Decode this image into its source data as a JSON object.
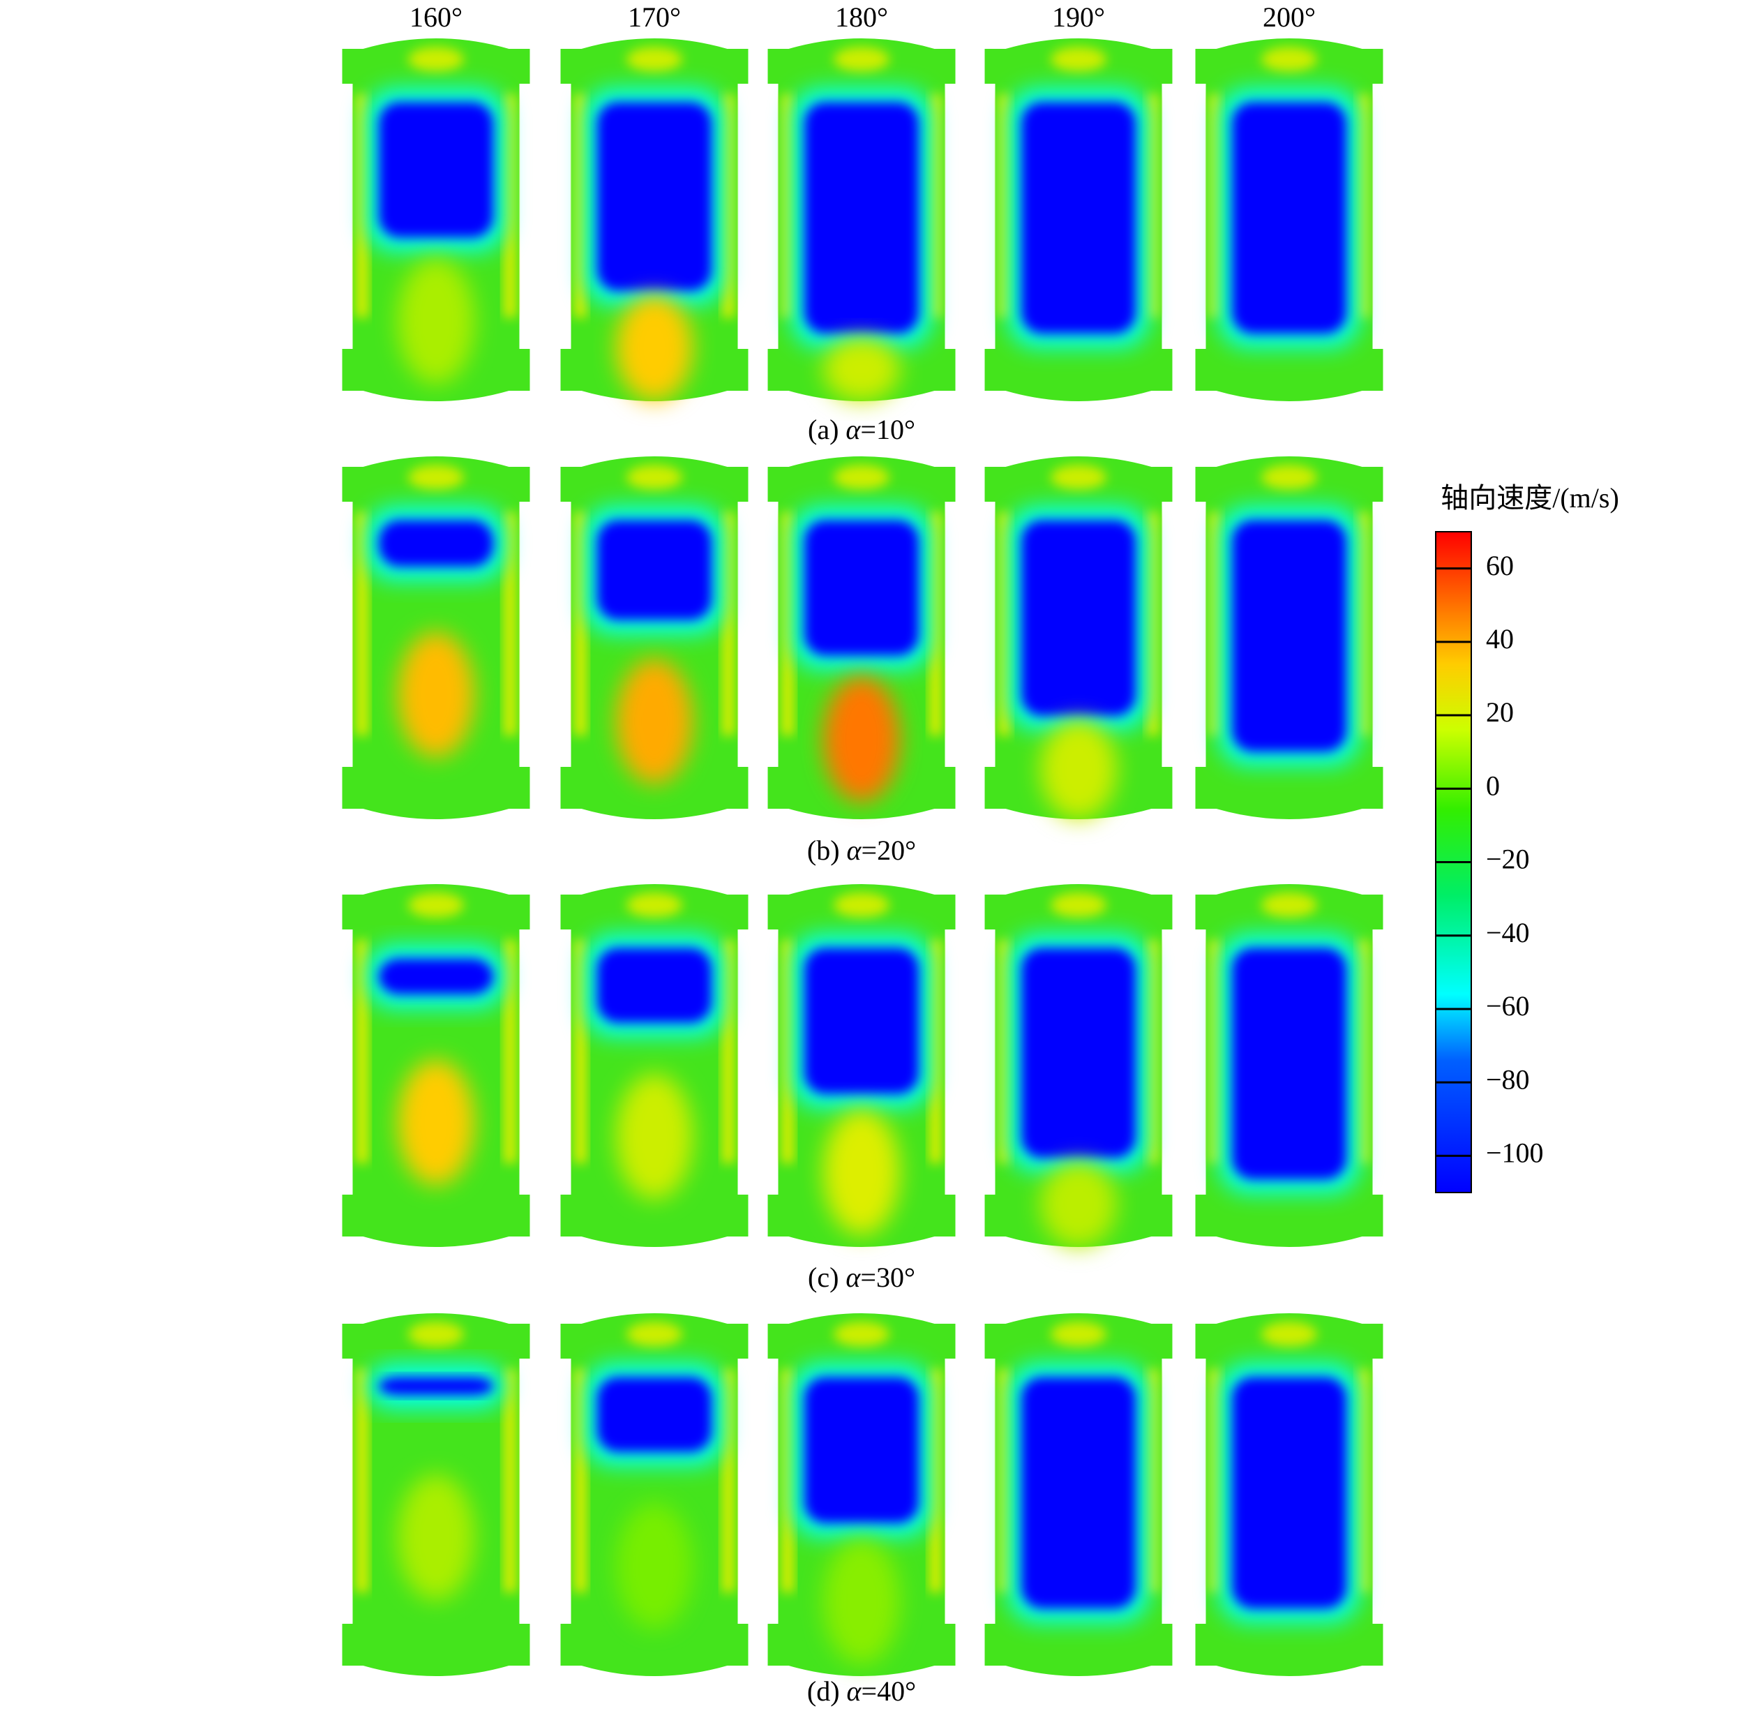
{
  "columns": [
    "160°",
    "170°",
    "180°",
    "190°",
    "200°"
  ],
  "rows": [
    {
      "prefix": "(a)",
      "symbol": "α",
      "rest": "=10°"
    },
    {
      "prefix": "(b)",
      "symbol": "α",
      "rest": "=20°"
    },
    {
      "prefix": "(c)",
      "symbol": "α",
      "rest": "=30°"
    },
    {
      "prefix": "(d)",
      "symbol": "α",
      "rest": "=40°"
    }
  ],
  "colorbar": {
    "title": "轴向速度/(m/s)",
    "lim": [
      -110,
      70
    ],
    "ticks": [
      {
        "value": 60,
        "label": "60"
      },
      {
        "value": 40,
        "label": "40"
      },
      {
        "value": 20,
        "label": "20"
      },
      {
        "value": 0,
        "label": "0"
      },
      {
        "value": -20,
        "label": "−20"
      },
      {
        "value": -40,
        "label": "−40"
      },
      {
        "value": -60,
        "label": "−60"
      },
      {
        "value": -80,
        "label": "−80"
      },
      {
        "value": -100,
        "label": "−100"
      }
    ]
  }
}
